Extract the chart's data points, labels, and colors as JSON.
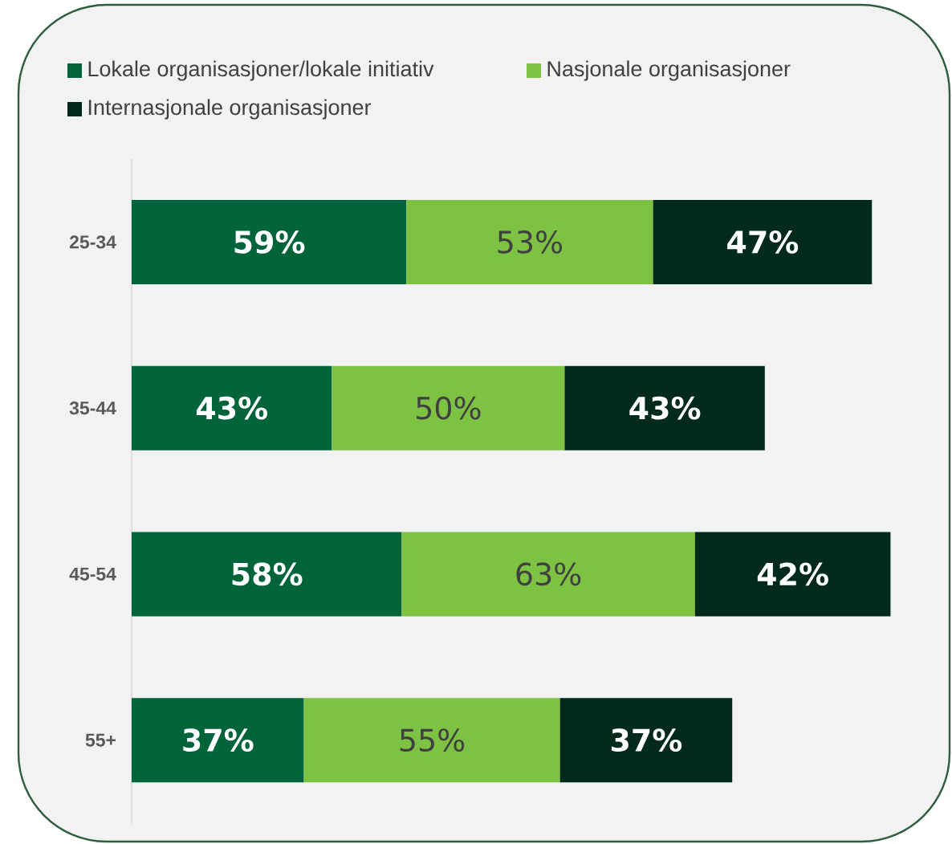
{
  "chart_data": {
    "type": "bar",
    "orientation": "horizontal",
    "stacked": true,
    "categories": [
      "25-34",
      "35-44",
      "45-54",
      "55+"
    ],
    "series": [
      {
        "name": "Lokale organisasjoner/lokale initiativ",
        "color": "#00643a",
        "values": [
          59,
          43,
          58,
          37
        ],
        "value_labels": [
          "59%",
          "43%",
          "58%",
          "37%"
        ]
      },
      {
        "name": "Nasjonale organisasjoner",
        "color": "#7dc243",
        "values": [
          53,
          50,
          63,
          55
        ],
        "value_labels": [
          "53%",
          "50%",
          "63%",
          "55%"
        ]
      },
      {
        "name": "Internasjonale organisasjoner",
        "color": "#002b1a",
        "values": [
          47,
          43,
          42,
          37
        ],
        "value_labels": [
          "47%",
          "43%",
          "42%",
          "37%"
        ]
      }
    ],
    "xlim": [
      0,
      175
    ],
    "tick_labels": "y",
    "legend": "top"
  }
}
